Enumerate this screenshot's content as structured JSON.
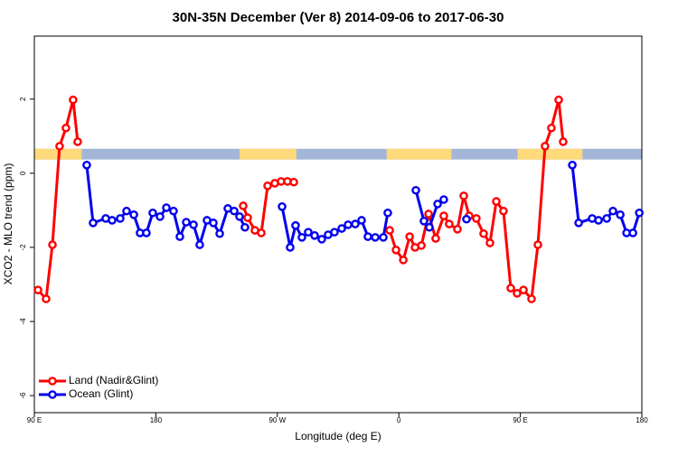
{
  "chart_data": {
    "type": "line",
    "title": "30N-35N December (Ver 8)   2014-09-06 to 2017-06-30",
    "xlabel": "Longitude (deg E)",
    "ylabel": "XCO2 - MLO trend (ppm)",
    "xlim": [
      90,
      540
    ],
    "ylim": [
      -6.46,
      3.7
    ],
    "xticks": [
      {
        "value": 90,
        "label": "90 E"
      },
      {
        "value": 180,
        "label": "180"
      },
      {
        "value": 270,
        "label": "90 W"
      },
      {
        "value": 360,
        "label": "0"
      },
      {
        "value": 450,
        "label": "90 E"
      },
      {
        "value": 540,
        "label": "180"
      }
    ],
    "yticks": [
      -6,
      -4,
      -2,
      0,
      2
    ],
    "legend": "bottom-left",
    "land_ocean_band": {
      "ylim": [
        0.37,
        0.66
      ],
      "land": [
        [
          90,
          125
        ],
        [
          242,
          284
        ],
        [
          351,
          399
        ],
        [
          448,
          496
        ]
      ],
      "land_color": "#ffd97a",
      "ocean_color": "#a4b6d8"
    },
    "series": [
      {
        "name": "Land (Nadir&Glint)",
        "color": "#ff0000",
        "x": [
          92.7,
          98.7,
          103.4,
          108.7,
          113.4,
          118.7,
          122.1,
          195,
          244.7,
          248.0,
          253.4,
          258.1,
          262.8,
          268.1,
          272.8,
          277.5,
          282.2,
          320,
          353.2,
          357.9,
          363.3,
          368.0,
          372.0,
          376.7,
          382.0,
          387.3,
          393.3,
          397.3,
          403.4,
          408.1,
          412.1,
          417.4,
          422.8,
          427.5,
          432.2,
          437.5,
          442.9,
          447.6,
          452.3,
          458.3,
          463.0,
          468.3,
          473.0,
          478.4,
          481.7
        ],
        "values": [
          -3.15,
          -3.39,
          -1.93,
          0.73,
          1.22,
          1.98,
          0.85,
          null,
          -0.88,
          -1.2,
          -1.54,
          -1.61,
          -0.34,
          -0.27,
          -0.22,
          -0.22,
          -0.24,
          null,
          -1.54,
          -2.07,
          -2.34,
          -1.71,
          -2.0,
          -1.95,
          -1.1,
          -1.76,
          -1.15,
          -1.37,
          -1.51,
          -0.61,
          -1.15,
          -1.22,
          -1.63,
          -1.88,
          -0.76,
          -1.02,
          -3.1,
          -3.24,
          -3.15,
          -3.39,
          -1.93,
          0.73,
          1.22,
          1.98,
          0.85
        ]
      },
      {
        "name": "Ocean (Glint)",
        "color": "#0000ee",
        "x": [
          128.8,
          133.5,
          142.9,
          147.6,
          153.6,
          158.3,
          163.7,
          168.3,
          173.0,
          177.7,
          183.1,
          187.8,
          193.1,
          197.8,
          202.5,
          207.9,
          212.5,
          217.9,
          222.6,
          227.3,
          233.3,
          238.0,
          242.0,
          246.0,
          290,
          273.5,
          279.5,
          283.5,
          288.2,
          292.9,
          297.6,
          302.9,
          307.6,
          312.3,
          317.7,
          322.4,
          327.7,
          332.4,
          337.1,
          342.5,
          348.5,
          351.8,
          355,
          372.6,
          378.6,
          382.6,
          388.7,
          393.3,
          400,
          410.1,
          450,
          488.5,
          493.2,
          503.2,
          507.9,
          514.0,
          518.6,
          524.0,
          528.7,
          533.4,
          538.1
        ],
        "values": [
          0.22,
          -1.34,
          -1.22,
          -1.27,
          -1.22,
          -1.02,
          -1.12,
          -1.61,
          -1.61,
          -1.07,
          -1.17,
          -0.93,
          -1.02,
          -1.71,
          -1.32,
          -1.39,
          -1.93,
          -1.27,
          -1.34,
          -1.63,
          -0.95,
          -1.02,
          -1.17,
          -1.46,
          null,
          -0.9,
          -2.0,
          -1.41,
          -1.73,
          -1.59,
          -1.68,
          -1.78,
          -1.66,
          -1.59,
          -1.49,
          -1.39,
          -1.37,
          -1.27,
          -1.71,
          -1.73,
          -1.73,
          -1.07,
          null,
          -0.46,
          -1.29,
          -1.46,
          -0.83,
          -0.71,
          null,
          -1.24,
          null,
          0.22,
          -1.34,
          -1.22,
          -1.27,
          -1.22,
          -1.02,
          -1.12,
          -1.61,
          -1.61,
          -1.07
        ]
      }
    ]
  }
}
